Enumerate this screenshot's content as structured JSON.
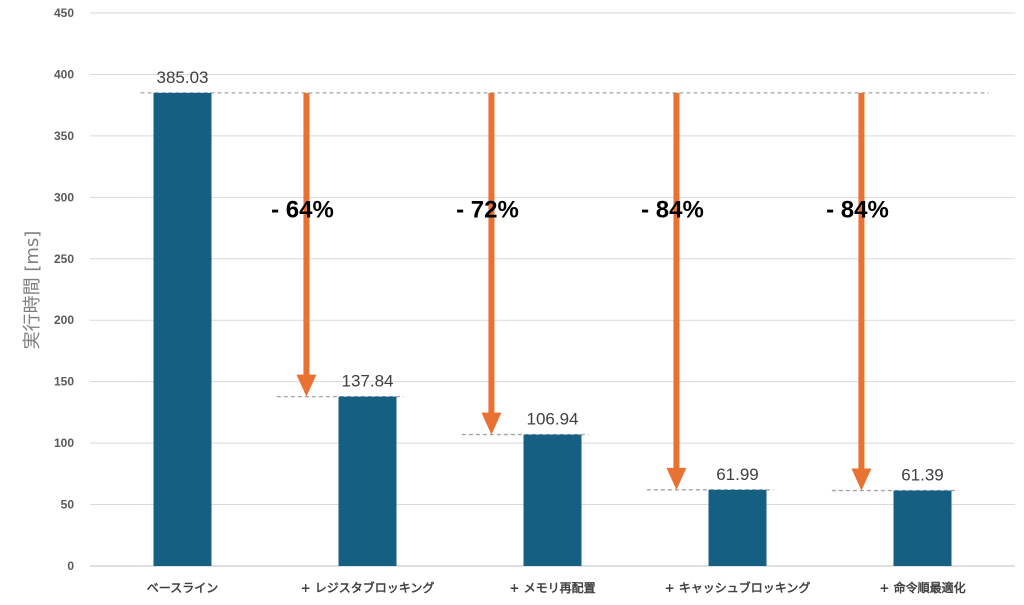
{
  "chart_data": {
    "type": "bar",
    "categories": [
      "ベースライン",
      "+ レジスタブロッキング",
      "+ メモリ再配置",
      "+ キャッシュブロッキング",
      "+ 命令順最適化"
    ],
    "values": [
      385.03,
      137.84,
      106.94,
      61.99,
      61.39
    ],
    "data_labels": [
      "385.03",
      "137.84",
      "106.94",
      "61.99",
      "61.39"
    ],
    "reductions": [
      "- 64%",
      "- 72%",
      "- 84%",
      "- 84%"
    ],
    "ylabel": "実行時間 [ms]",
    "xlabel": "",
    "ylim": [
      0,
      450
    ],
    "yticks": [
      0,
      50,
      100,
      150,
      200,
      250,
      300,
      350,
      400,
      450
    ],
    "grid": true,
    "colors": {
      "bar": "#155f82",
      "arrow": "#e97132",
      "gridline": "#d9d9d9",
      "dashed": "#a6a6a6"
    }
  }
}
